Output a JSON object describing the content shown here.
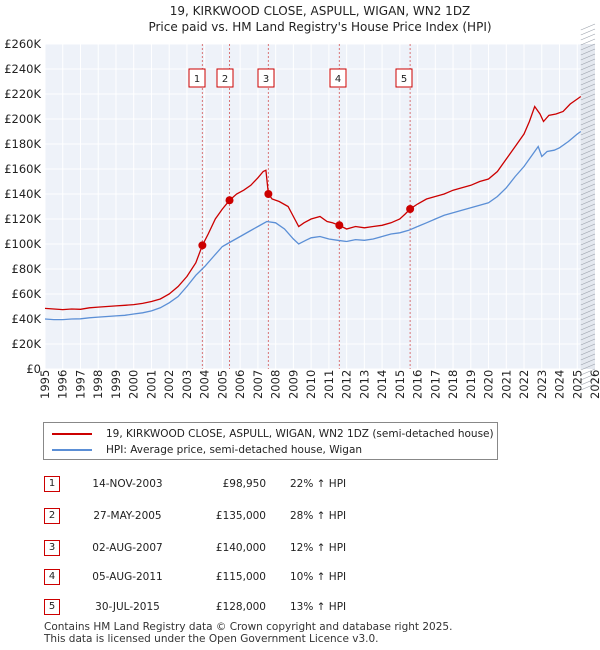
{
  "chart_data": {
    "type": "line",
    "title": "19, KIRKWOOD CLOSE, ASPULL, WIGAN, WN2 1DZ",
    "subtitle": "Price paid vs. HM Land Registry's House Price Index (HPI)",
    "xlim": [
      1995,
      2026
    ],
    "ylim": [
      0,
      260000
    ],
    "x_ticks": [
      "1995",
      "1996",
      "1997",
      "1998",
      "1999",
      "2000",
      "2001",
      "2002",
      "2003",
      "2004",
      "2005",
      "2006",
      "2007",
      "2008",
      "2009",
      "2010",
      "2011",
      "2012",
      "2013",
      "2014",
      "2015",
      "2016",
      "2017",
      "2018",
      "2019",
      "2020",
      "2021",
      "2022",
      "2023",
      "2024",
      "2025",
      "2026"
    ],
    "y_ticks": [
      {
        "value": 0,
        "label": "£0"
      },
      {
        "value": 20000,
        "label": "£20K"
      },
      {
        "value": 40000,
        "label": "£40K"
      },
      {
        "value": 60000,
        "label": "£60K"
      },
      {
        "value": 80000,
        "label": "£80K"
      },
      {
        "value": 100000,
        "label": "£100K"
      },
      {
        "value": 120000,
        "label": "£120K"
      },
      {
        "value": 140000,
        "label": "£140K"
      },
      {
        "value": 160000,
        "label": "£160K"
      },
      {
        "value": 180000,
        "label": "£180K"
      },
      {
        "value": 200000,
        "label": "£200K"
      },
      {
        "value": 220000,
        "label": "£220K"
      },
      {
        "value": 240000,
        "label": "£240K"
      },
      {
        "value": 260000,
        "label": "£260K"
      }
    ],
    "grid": true,
    "series": [
      {
        "name": "19, KIRKWOOD CLOSE, ASPULL, WIGAN, WN2 1DZ (semi-detached house)",
        "color": "#cc0000",
        "points": [
          [
            1995.0,
            48500
          ],
          [
            1995.5,
            48000
          ],
          [
            1996.0,
            47500
          ],
          [
            1996.5,
            48000
          ],
          [
            1997.0,
            47800
          ],
          [
            1997.5,
            49000
          ],
          [
            1998.0,
            49500
          ],
          [
            1998.5,
            50000
          ],
          [
            1999.0,
            50500
          ],
          [
            1999.5,
            51000
          ],
          [
            2000.0,
            51500
          ],
          [
            2000.5,
            52500
          ],
          [
            2001.0,
            54000
          ],
          [
            2001.5,
            56000
          ],
          [
            2002.0,
            60000
          ],
          [
            2002.5,
            66000
          ],
          [
            2003.0,
            74000
          ],
          [
            2003.5,
            85000
          ],
          [
            2003.87,
            98950
          ],
          [
            2004.2,
            108000
          ],
          [
            2004.6,
            120000
          ],
          [
            2005.0,
            128000
          ],
          [
            2005.4,
            135000
          ],
          [
            2005.8,
            140000
          ],
          [
            2006.2,
            143000
          ],
          [
            2006.6,
            147000
          ],
          [
            2007.0,
            153000
          ],
          [
            2007.3,
            158000
          ],
          [
            2007.45,
            159000
          ],
          [
            2007.59,
            140000
          ],
          [
            2007.8,
            136000
          ],
          [
            2008.2,
            134000
          ],
          [
            2008.7,
            130000
          ],
          [
            2009.0,
            122000
          ],
          [
            2009.3,
            114000
          ],
          [
            2009.6,
            117000
          ],
          [
            2010.0,
            120000
          ],
          [
            2010.5,
            122000
          ],
          [
            2010.9,
            118000
          ],
          [
            2011.2,
            117000
          ],
          [
            2011.59,
            115000
          ],
          [
            2012.0,
            112000
          ],
          [
            2012.5,
            114000
          ],
          [
            2013.0,
            113000
          ],
          [
            2013.5,
            114000
          ],
          [
            2014.0,
            115000
          ],
          [
            2014.5,
            117000
          ],
          [
            2015.0,
            120000
          ],
          [
            2015.3,
            124000
          ],
          [
            2015.58,
            128000
          ],
          [
            2016.0,
            132000
          ],
          [
            2016.5,
            136000
          ],
          [
            2017.0,
            138000
          ],
          [
            2017.5,
            140000
          ],
          [
            2018.0,
            143000
          ],
          [
            2018.5,
            145000
          ],
          [
            2019.0,
            147000
          ],
          [
            2019.5,
            150000
          ],
          [
            2020.0,
            152000
          ],
          [
            2020.5,
            158000
          ],
          [
            2021.0,
            168000
          ],
          [
            2021.5,
            178000
          ],
          [
            2022.0,
            188000
          ],
          [
            2022.3,
            198000
          ],
          [
            2022.6,
            210000
          ],
          [
            2022.9,
            204000
          ],
          [
            2023.1,
            198000
          ],
          [
            2023.4,
            203000
          ],
          [
            2023.8,
            204000
          ],
          [
            2024.2,
            206000
          ],
          [
            2024.6,
            212000
          ],
          [
            2025.0,
            216000
          ],
          [
            2025.2,
            218000
          ]
        ]
      },
      {
        "name": "HPI: Average price, semi-detached house, Wigan",
        "color": "#5b8fd6",
        "points": [
          [
            1995.0,
            40000
          ],
          [
            1995.5,
            39500
          ],
          [
            1996.0,
            39500
          ],
          [
            1996.5,
            40000
          ],
          [
            1997.0,
            40200
          ],
          [
            1997.5,
            41000
          ],
          [
            1998.0,
            41500
          ],
          [
            1998.5,
            42000
          ],
          [
            1999.0,
            42500
          ],
          [
            1999.5,
            43000
          ],
          [
            2000.0,
            44000
          ],
          [
            2000.5,
            45000
          ],
          [
            2001.0,
            46500
          ],
          [
            2001.5,
            49000
          ],
          [
            2002.0,
            53000
          ],
          [
            2002.5,
            58000
          ],
          [
            2003.0,
            66000
          ],
          [
            2003.5,
            75000
          ],
          [
            2004.0,
            82000
          ],
          [
            2004.5,
            90000
          ],
          [
            2005.0,
            98000
          ],
          [
            2005.5,
            102000
          ],
          [
            2006.0,
            106000
          ],
          [
            2006.5,
            110000
          ],
          [
            2007.0,
            114000
          ],
          [
            2007.5,
            118000
          ],
          [
            2008.0,
            117000
          ],
          [
            2008.5,
            112000
          ],
          [
            2009.0,
            104000
          ],
          [
            2009.3,
            100000
          ],
          [
            2009.7,
            103000
          ],
          [
            2010.0,
            105000
          ],
          [
            2010.5,
            106000
          ],
          [
            2011.0,
            104000
          ],
          [
            2011.5,
            103000
          ],
          [
            2012.0,
            102000
          ],
          [
            2012.5,
            103500
          ],
          [
            2013.0,
            103000
          ],
          [
            2013.5,
            104000
          ],
          [
            2014.0,
            106000
          ],
          [
            2014.5,
            108000
          ],
          [
            2015.0,
            109000
          ],
          [
            2015.5,
            111000
          ],
          [
            2016.0,
            114000
          ],
          [
            2016.5,
            117000
          ],
          [
            2017.0,
            120000
          ],
          [
            2017.5,
            123000
          ],
          [
            2018.0,
            125000
          ],
          [
            2018.5,
            127000
          ],
          [
            2019.0,
            129000
          ],
          [
            2019.5,
            131000
          ],
          [
            2020.0,
            133000
          ],
          [
            2020.5,
            138000
          ],
          [
            2021.0,
            145000
          ],
          [
            2021.5,
            154000
          ],
          [
            2022.0,
            162000
          ],
          [
            2022.5,
            172000
          ],
          [
            2022.8,
            178000
          ],
          [
            2023.0,
            170000
          ],
          [
            2023.3,
            174000
          ],
          [
            2023.7,
            175000
          ],
          [
            2024.0,
            177000
          ],
          [
            2024.5,
            182000
          ],
          [
            2025.0,
            188000
          ],
          [
            2025.2,
            190000
          ]
        ]
      }
    ],
    "sales": [
      {
        "label": "1",
        "x": 2003.87,
        "price": 98950
      },
      {
        "label": "2",
        "x": 2005.4,
        "price": 135000
      },
      {
        "label": "3",
        "x": 2007.59,
        "price": 140000
      },
      {
        "label": "4",
        "x": 2011.59,
        "price": 115000
      },
      {
        "label": "5",
        "x": 2015.58,
        "price": 128000
      }
    ],
    "forecast_start": 2025.2
  },
  "legend": {
    "property": "19, KIRKWOOD CLOSE, ASPULL, WIGAN, WN2 1DZ (semi-detached house)",
    "hpi": "HPI: Average price, semi-detached house, Wigan"
  },
  "transactions": [
    {
      "num": "1",
      "date": "14-NOV-2003",
      "price": "£98,950",
      "hpi": "22% ↑ HPI"
    },
    {
      "num": "2",
      "date": "27-MAY-2005",
      "price": "£135,000",
      "hpi": "28% ↑ HPI"
    },
    {
      "num": "3",
      "date": "02-AUG-2007",
      "price": "£140,000",
      "hpi": "12% ↑ HPI"
    },
    {
      "num": "4",
      "date": "05-AUG-2011",
      "price": "£115,000",
      "hpi": "10% ↑ HPI"
    },
    {
      "num": "5",
      "date": "30-JUL-2015",
      "price": "£128,000",
      "hpi": "13% ↑ HPI"
    }
  ],
  "footer": {
    "line1": "Contains HM Land Registry data © Crown copyright and database right 2025.",
    "line2": "This data is licensed under the Open Government Licence v3.0."
  }
}
